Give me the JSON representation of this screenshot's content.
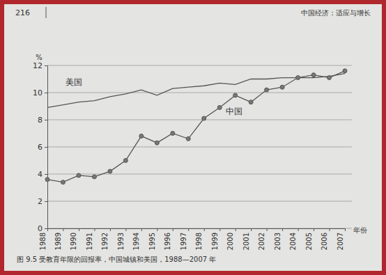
{
  "chart_data": {
    "type": "line",
    "title": "图 9.5 受教育年限的回报率，中国城镇和美国，1988—2007 年",
    "annotations": [
      "216",
      "中国经济：适应与增长"
    ],
    "x_label": "年份",
    "y_label": "%",
    "categories": [
      "1988",
      "1989",
      "1990",
      "1991",
      "1992",
      "1993",
      "1994",
      "1995",
      "1996",
      "1997",
      "1998",
      "1999",
      "2000",
      "2001",
      "2002",
      "2003",
      "2004",
      "2005",
      "2006",
      "2007"
    ],
    "series": [
      {
        "name": "美国",
        "color": "#555555",
        "marker": "none",
        "line_style": "solid",
        "values": [
          8.9,
          9.1,
          9.3,
          9.4,
          9.7,
          9.9,
          10.2,
          9.8,
          10.3,
          10.4,
          10.5,
          10.7,
          10.6,
          11.0,
          11.0,
          11.1,
          11.1,
          11.1,
          11.2,
          11.4
        ]
      },
      {
        "name": "中国",
        "color": "#555555",
        "marker": "circle",
        "line_style": "solid",
        "values": [
          3.6,
          3.4,
          3.9,
          3.8,
          4.2,
          5.0,
          6.8,
          6.3,
          7.0,
          6.6,
          8.1,
          8.9,
          9.8,
          9.3,
          10.2,
          10.4,
          11.1,
          11.3,
          11.1,
          11.6
        ]
      }
    ],
    "ylim": [
      0,
      12
    ],
    "yticks": [
      0,
      2,
      4,
      6,
      8,
      10,
      12
    ],
    "grid": true
  }
}
